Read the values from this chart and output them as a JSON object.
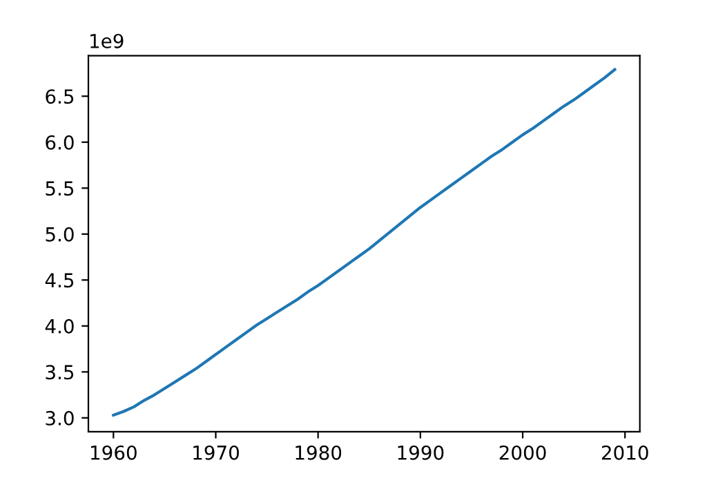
{
  "chart_data": {
    "type": "line",
    "x": [
      1960,
      1961,
      1962,
      1963,
      1964,
      1965,
      1966,
      1967,
      1968,
      1969,
      1970,
      1971,
      1972,
      1973,
      1974,
      1975,
      1976,
      1977,
      1978,
      1979,
      1980,
      1981,
      1982,
      1983,
      1984,
      1985,
      1986,
      1987,
      1988,
      1989,
      1990,
      1991,
      1992,
      1993,
      1994,
      1995,
      1996,
      1997,
      1998,
      1999,
      2000,
      2001,
      2002,
      2003,
      2004,
      2005,
      2006,
      2007,
      2008,
      2009
    ],
    "series": [
      {
        "color": "#1f77b4",
        "values": [
          3.03,
          3.07,
          3.12,
          3.19,
          3.25,
          3.32,
          3.39,
          3.46,
          3.53,
          3.61,
          3.69,
          3.77,
          3.85,
          3.93,
          4.01,
          4.08,
          4.15,
          4.22,
          4.29,
          4.37,
          4.44,
          4.52,
          4.6,
          4.68,
          4.76,
          4.84,
          4.93,
          5.02,
          5.11,
          5.2,
          5.29,
          5.37,
          5.45,
          5.53,
          5.61,
          5.69,
          5.77,
          5.85,
          5.92,
          6.0,
          6.08,
          6.15,
          6.23,
          6.31,
          6.39,
          6.46,
          6.54,
          6.62,
          6.7,
          6.79
        ]
      }
    ],
    "xlim": [
      1957.55,
      2011.45
    ],
    "ylim": [
      2.85,
      6.94
    ],
    "xticks": [
      1960,
      1970,
      1980,
      1990,
      2000,
      2010
    ],
    "yticks": [
      {
        "value": 3.0,
        "label": "3.0"
      },
      {
        "value": 3.5,
        "label": "3.5"
      },
      {
        "value": 4.0,
        "label": "4.0"
      },
      {
        "value": 4.5,
        "label": "4.5"
      },
      {
        "value": 5.0,
        "label": "5.0"
      },
      {
        "value": 5.5,
        "label": "5.5"
      },
      {
        "value": 6.0,
        "label": "6.0"
      },
      {
        "value": 6.5,
        "label": "6.5"
      }
    ],
    "annotations": [
      "1e9"
    ],
    "grid": false,
    "marker": "none",
    "line_style": "solid"
  }
}
